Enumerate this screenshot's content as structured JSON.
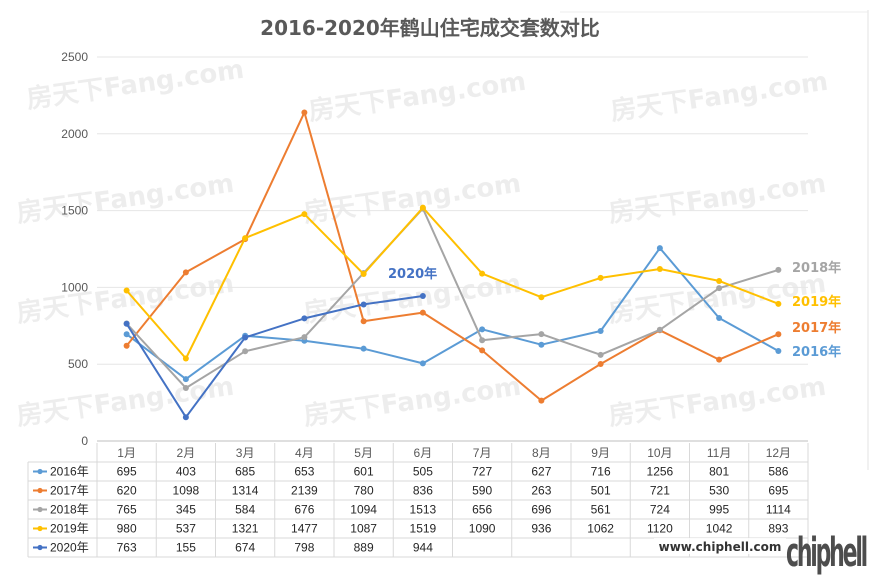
{
  "chart_data": {
    "type": "line",
    "title": "2016-2020年鹤山住宅成交套数对比",
    "categories": [
      "1月",
      "2月",
      "3月",
      "4月",
      "5月",
      "6月",
      "7月",
      "8月",
      "9月",
      "10月",
      "11月",
      "12月"
    ],
    "ylim": [
      0,
      2500
    ],
    "yticks": [
      0,
      500,
      1000,
      1500,
      2000,
      2500
    ],
    "grid": true,
    "legend": "data-table",
    "series": [
      {
        "name": "2016年",
        "color": "#5b9bd5",
        "values": [
          695,
          403,
          685,
          653,
          601,
          505,
          727,
          627,
          716,
          1256,
          801,
          586
        ],
        "end_label": "2016年"
      },
      {
        "name": "2017年",
        "color": "#ed7d31",
        "values": [
          620,
          1098,
          1314,
          2139,
          780,
          836,
          590,
          263,
          501,
          721,
          530,
          695
        ],
        "end_label": "2017年"
      },
      {
        "name": "2018年",
        "color": "#a5a5a5",
        "values": [
          765,
          345,
          584,
          676,
          1094,
          1513,
          656,
          696,
          561,
          724,
          995,
          1114
        ],
        "end_label": "2018年"
      },
      {
        "name": "2019年",
        "color": "#ffc000",
        "values": [
          980,
          537,
          1321,
          1477,
          1087,
          1519,
          1090,
          936,
          1062,
          1120,
          1042,
          893
        ],
        "end_label": "2019年"
      },
      {
        "name": "2020年",
        "color": "#4472c4",
        "values": [
          763,
          155,
          674,
          798,
          889,
          944,
          null,
          null,
          null,
          null,
          null,
          null
        ],
        "end_label": "2020年"
      }
    ],
    "table_display": [
      [
        "695",
        "403",
        "685",
        "653",
        "601",
        "505",
        "727",
        "627",
        "716",
        "1256",
        "801",
        "586"
      ],
      [
        "620",
        "1098",
        "1314",
        "2139",
        "780",
        "836",
        "590",
        "263",
        "501",
        "721",
        "530",
        "695"
      ],
      [
        "765",
        "345",
        "584",
        "676",
        "1094",
        "1513",
        "656",
        "696",
        "561",
        "724",
        "995",
        "1114"
      ],
      [
        "980",
        "537",
        "1321",
        "1477",
        "1087",
        "1519",
        "1090",
        "936",
        "1062",
        "1120",
        "1042",
        "893"
      ],
      [
        "763",
        "155",
        "674",
        "798",
        "889",
        "944",
        "",
        "",
        "",
        "",
        "",
        ""
      ]
    ]
  },
  "watermark": {
    "text": "房天下Fang.com"
  },
  "branding": {
    "logo_text": "chiphell",
    "url": "www.chiphell.com"
  }
}
